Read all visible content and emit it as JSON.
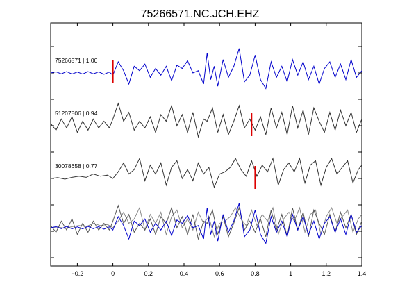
{
  "chart_data": {
    "type": "line",
    "title": "75266571.NC.JCH.EHZ",
    "xlabel": "",
    "ylabel": "",
    "xlim": [
      -0.35,
      1.4
    ],
    "x_ticks": [
      -0.2,
      0,
      0.2,
      0.4,
      0.6,
      0.8,
      1,
      1.2,
      1.4
    ],
    "x_tick_labels": [
      "−0.2",
      "0",
      "0.2",
      "0.4",
      "0.6",
      "0.8",
      "1",
      "1.2",
      "1.4"
    ],
    "grid": false,
    "colors": {
      "reference": "#0000cc",
      "other": "#333333",
      "pick": "#dd0000",
      "overlay_other": "#888888"
    },
    "traces": [
      {
        "label": "75266571 | 1.00",
        "color": "#0000cc",
        "pick_x": 0.0,
        "points": [
          [
            -0.35,
            0
          ],
          [
            -0.32,
            0.05
          ],
          [
            -0.29,
            -0.04
          ],
          [
            -0.26,
            0.06
          ],
          [
            -0.23,
            -0.05
          ],
          [
            -0.2,
            0.04
          ],
          [
            -0.17,
            -0.05
          ],
          [
            -0.14,
            0.06
          ],
          [
            -0.11,
            -0.04
          ],
          [
            -0.08,
            0.05
          ],
          [
            -0.05,
            -0.06
          ],
          [
            -0.02,
            0.04
          ],
          [
            0,
            -0.1
          ],
          [
            0.03,
            0.5
          ],
          [
            0.06,
            0.1
          ],
          [
            0.09,
            -0.5
          ],
          [
            0.12,
            0.3
          ],
          [
            0.15,
            0.1
          ],
          [
            0.18,
            0.4
          ],
          [
            0.21,
            -0.2
          ],
          [
            0.24,
            0.2
          ],
          [
            0.27,
            -0.1
          ],
          [
            0.3,
            0.3
          ],
          [
            0.33,
            -0.35
          ],
          [
            0.36,
            0.35
          ],
          [
            0.39,
            0.2
          ],
          [
            0.42,
            0.55
          ],
          [
            0.45,
            0
          ],
          [
            0.48,
            0.1
          ],
          [
            0.51,
            -0.5
          ],
          [
            0.53,
            0.9
          ],
          [
            0.55,
            -0.3
          ],
          [
            0.57,
            0.3
          ],
          [
            0.59,
            -0.6
          ],
          [
            0.62,
            0.6
          ],
          [
            0.65,
            -0.2
          ],
          [
            0.68,
            0.3
          ],
          [
            0.71,
            1.1
          ],
          [
            0.74,
            -0.4
          ],
          [
            0.77,
            -0.1
          ],
          [
            0.8,
            0.8
          ],
          [
            0.83,
            -0.3
          ],
          [
            0.86,
            -0.7
          ],
          [
            0.89,
            0.5
          ],
          [
            0.92,
            -0.2
          ],
          [
            0.95,
            0.3
          ],
          [
            0.98,
            -0.4
          ],
          [
            1.01,
            0.6
          ],
          [
            1.04,
            -0.1
          ],
          [
            1.07,
            0.5
          ],
          [
            1.1,
            -0.3
          ],
          [
            1.13,
            0.3
          ],
          [
            1.16,
            -0.5
          ],
          [
            1.19,
            0.2
          ],
          [
            1.22,
            0.5
          ],
          [
            1.25,
            -0.2
          ],
          [
            1.28,
            0.4
          ],
          [
            1.31,
            -0.3
          ],
          [
            1.34,
            0.6
          ],
          [
            1.37,
            -0.2
          ],
          [
            1.4,
            0.1
          ]
        ]
      },
      {
        "label": "51207806 | 0.94",
        "color": "#333333",
        "pick_x": 0.78,
        "points": [
          [
            -0.35,
            0.1
          ],
          [
            -0.32,
            -0.2
          ],
          [
            -0.29,
            0.3
          ],
          [
            -0.26,
            -0.1
          ],
          [
            -0.23,
            0.4
          ],
          [
            -0.2,
            -0.3
          ],
          [
            -0.17,
            0.2
          ],
          [
            -0.14,
            -0.2
          ],
          [
            -0.11,
            0.3
          ],
          [
            -0.08,
            -0.1
          ],
          [
            -0.05,
            0.2
          ],
          [
            -0.02,
            -0.1
          ],
          [
            0,
            0.3
          ],
          [
            0.03,
            1.0
          ],
          [
            0.06,
            0.2
          ],
          [
            0.09,
            0.6
          ],
          [
            0.12,
            -0.2
          ],
          [
            0.15,
            0.2
          ],
          [
            0.18,
            -0.1
          ],
          [
            0.21,
            0.4
          ],
          [
            0.24,
            -0.3
          ],
          [
            0.27,
            0.5
          ],
          [
            0.3,
            0.2
          ],
          [
            0.33,
            0.9
          ],
          [
            0.36,
            0.0
          ],
          [
            0.39,
            0.5
          ],
          [
            0.42,
            -0.3
          ],
          [
            0.45,
            0.6
          ],
          [
            0.48,
            -0.5
          ],
          [
            0.51,
            0.3
          ],
          [
            0.53,
            0.2
          ],
          [
            0.56,
            0.8
          ],
          [
            0.59,
            -0.3
          ],
          [
            0.62,
            0.5
          ],
          [
            0.65,
            -0.4
          ],
          [
            0.68,
            0.2
          ],
          [
            0.71,
            0.9
          ],
          [
            0.74,
            -0.1
          ],
          [
            0.77,
            0.3
          ],
          [
            0.8,
            -0.2
          ],
          [
            0.83,
            0.4
          ],
          [
            0.86,
            -0.4
          ],
          [
            0.89,
            0.8
          ],
          [
            0.92,
            -0.1
          ],
          [
            0.95,
            0.6
          ],
          [
            0.98,
            -0.4
          ],
          [
            1.01,
            0.9
          ],
          [
            1.04,
            -0.1
          ],
          [
            1.07,
            0.7
          ],
          [
            1.1,
            -0.4
          ],
          [
            1.13,
            0.8
          ],
          [
            1.16,
            0.2
          ],
          [
            1.19,
            -0.3
          ],
          [
            1.22,
            0.6
          ],
          [
            1.25,
            -0.2
          ],
          [
            1.28,
            0.7
          ],
          [
            1.31,
            0.0
          ],
          [
            1.34,
            0.6
          ],
          [
            1.37,
            -0.3
          ],
          [
            1.4,
            0.3
          ]
        ]
      },
      {
        "label": "30078658 | 0.77",
        "color": "#333333",
        "pick_x": 0.8,
        "points": [
          [
            -0.35,
            0
          ],
          [
            -0.31,
            0.04
          ],
          [
            -0.27,
            -0.03
          ],
          [
            -0.23,
            0.05
          ],
          [
            -0.19,
            0.1
          ],
          [
            -0.15,
            0.05
          ],
          [
            -0.11,
            0.2
          ],
          [
            -0.07,
            0.1
          ],
          [
            -0.03,
            0.15
          ],
          [
            0,
            0
          ],
          [
            0.03,
            0.3
          ],
          [
            0.06,
            0.7
          ],
          [
            0.09,
            0.2
          ],
          [
            0.12,
            0.4
          ],
          [
            0.15,
            0.9
          ],
          [
            0.18,
            -0.1
          ],
          [
            0.21,
            0.6
          ],
          [
            0.24,
            0.2
          ],
          [
            0.27,
            0.7
          ],
          [
            0.3,
            -0.3
          ],
          [
            0.33,
            0.5
          ],
          [
            0.36,
            0.8
          ],
          [
            0.39,
            0.0
          ],
          [
            0.42,
            0.4
          ],
          [
            0.45,
            -0.1
          ],
          [
            0.48,
            0.7
          ],
          [
            0.51,
            0.2
          ],
          [
            0.54,
            0.5
          ],
          [
            0.57,
            -0.4
          ],
          [
            0.6,
            0.2
          ],
          [
            0.63,
            0.3
          ],
          [
            0.66,
            0.5
          ],
          [
            0.69,
            0.9
          ],
          [
            0.72,
            0.4
          ],
          [
            0.75,
            0.1
          ],
          [
            0.78,
            0.8
          ],
          [
            0.81,
            0.1
          ],
          [
            0.84,
            0.6
          ],
          [
            0.87,
            0.3
          ],
          [
            0.9,
            0.9
          ],
          [
            0.93,
            -0.3
          ],
          [
            0.96,
            0.4
          ],
          [
            0.99,
            0.7
          ],
          [
            1.02,
            0.3
          ],
          [
            1.05,
            0.9
          ],
          [
            1.08,
            -0.2
          ],
          [
            1.11,
            0.6
          ],
          [
            1.14,
            0.8
          ],
          [
            1.17,
            -0.3
          ],
          [
            1.2,
            0.5
          ],
          [
            1.23,
            0.9
          ],
          [
            1.26,
            0.2
          ],
          [
            1.29,
            0.5
          ],
          [
            1.32,
            0.8
          ],
          [
            1.35,
            -0.2
          ],
          [
            1.38,
            0.4
          ],
          [
            1.4,
            0.6
          ]
        ]
      }
    ]
  }
}
